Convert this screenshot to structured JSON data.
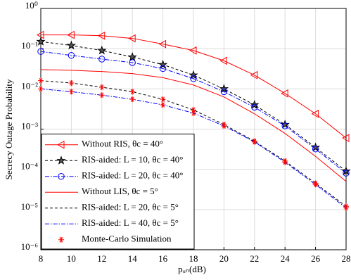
{
  "chart_data": {
    "type": "line",
    "xlabel": "pᵤₙ(dB)",
    "ylabel": "Secrecy  Outage Probability",
    "x": [
      8,
      10,
      12,
      14,
      16,
      18,
      20,
      22,
      24,
      26,
      28
    ],
    "xlim": [
      8,
      28
    ],
    "xticks": [
      8,
      10,
      12,
      14,
      16,
      18,
      20,
      22,
      24,
      26,
      28
    ],
    "ylim": [
      1e-06,
      1
    ],
    "log_y": true,
    "yticks": [
      {
        "value": 1e-06,
        "label": "10⁻⁶"
      },
      {
        "value": 1e-05,
        "label": "10⁻⁵"
      },
      {
        "value": 0.0001,
        "label": "10⁻⁴"
      },
      {
        "value": 0.001,
        "label": "10⁻³"
      },
      {
        "value": 0.01,
        "label": "10⁻²"
      },
      {
        "value": 0.1,
        "label": "10⁻¹"
      },
      {
        "value": 1,
        "label": "10⁰"
      }
    ],
    "grid": true,
    "legend": "lower left",
    "series": [
      {
        "name": "Without RIS, θc = 40°",
        "color": "#ff0000",
        "line": "solid",
        "marker": "triangle-left",
        "values": [
          0.22,
          0.22,
          0.21,
          0.18,
          0.13,
          0.09,
          0.05,
          0.022,
          0.0077,
          0.0024,
          0.0006
        ]
      },
      {
        "name": "RIS-aided: L = 10, θc = 40°",
        "color": "#000000",
        "line": "dashed",
        "marker": "star",
        "values": [
          0.15,
          0.12,
          0.09,
          0.062,
          0.04,
          0.022,
          0.01,
          0.004,
          0.0013,
          0.00035,
          9e-05
        ]
      },
      {
        "name": "RIS-aided: L = 20, θc = 40°",
        "color": "#0000ff",
        "line": "dashdot",
        "marker": "circle",
        "values": [
          0.085,
          0.068,
          0.055,
          0.045,
          0.032,
          0.018,
          0.0085,
          0.0035,
          0.0012,
          0.00032,
          8e-05
        ]
      },
      {
        "name": "Without LIS, θc = 5°",
        "color": "#ff0000",
        "line": "solid",
        "marker": "none",
        "values": [
          0.03,
          0.029,
          0.027,
          0.024,
          0.019,
          0.0125,
          0.0063,
          0.0024,
          0.00078,
          0.00021,
          5e-05
        ]
      },
      {
        "name": "RIS-aided: L = 20, θc = 5°",
        "color": "#000000",
        "line": "dashed",
        "marker": "none",
        "values": [
          0.016,
          0.014,
          0.011,
          0.0085,
          0.0055,
          0.003,
          0.0013,
          0.0005,
          0.00016,
          4.5e-05,
          1.2e-05
        ]
      },
      {
        "name": "RIS-aided: L = 40, θc = 5°",
        "color": "#0000ff",
        "line": "dashdot",
        "marker": "none",
        "values": [
          0.01,
          0.0085,
          0.007,
          0.0055,
          0.004,
          0.0025,
          0.0012,
          0.00048,
          0.00015,
          4.2e-05,
          1.1e-05
        ]
      },
      {
        "name": "Monte-Carlo Simulation",
        "color": "#ff0000",
        "line": "none",
        "marker": "asterisk",
        "x": [
          8,
          8,
          10,
          10,
          12,
          12,
          14,
          14,
          16,
          16,
          18,
          18,
          20,
          20,
          22,
          22,
          24,
          24,
          26,
          26,
          28,
          28
        ],
        "values": [
          0.016,
          0.01,
          0.014,
          0.0085,
          0.011,
          0.007,
          0.0085,
          0.0055,
          0.0055,
          0.004,
          0.003,
          0.0025,
          0.0013,
          0.0012,
          0.0005,
          0.00048,
          0.00016,
          0.00015,
          4.5e-05,
          4.2e-05,
          1.2e-05,
          1.1e-05
        ]
      }
    ]
  }
}
